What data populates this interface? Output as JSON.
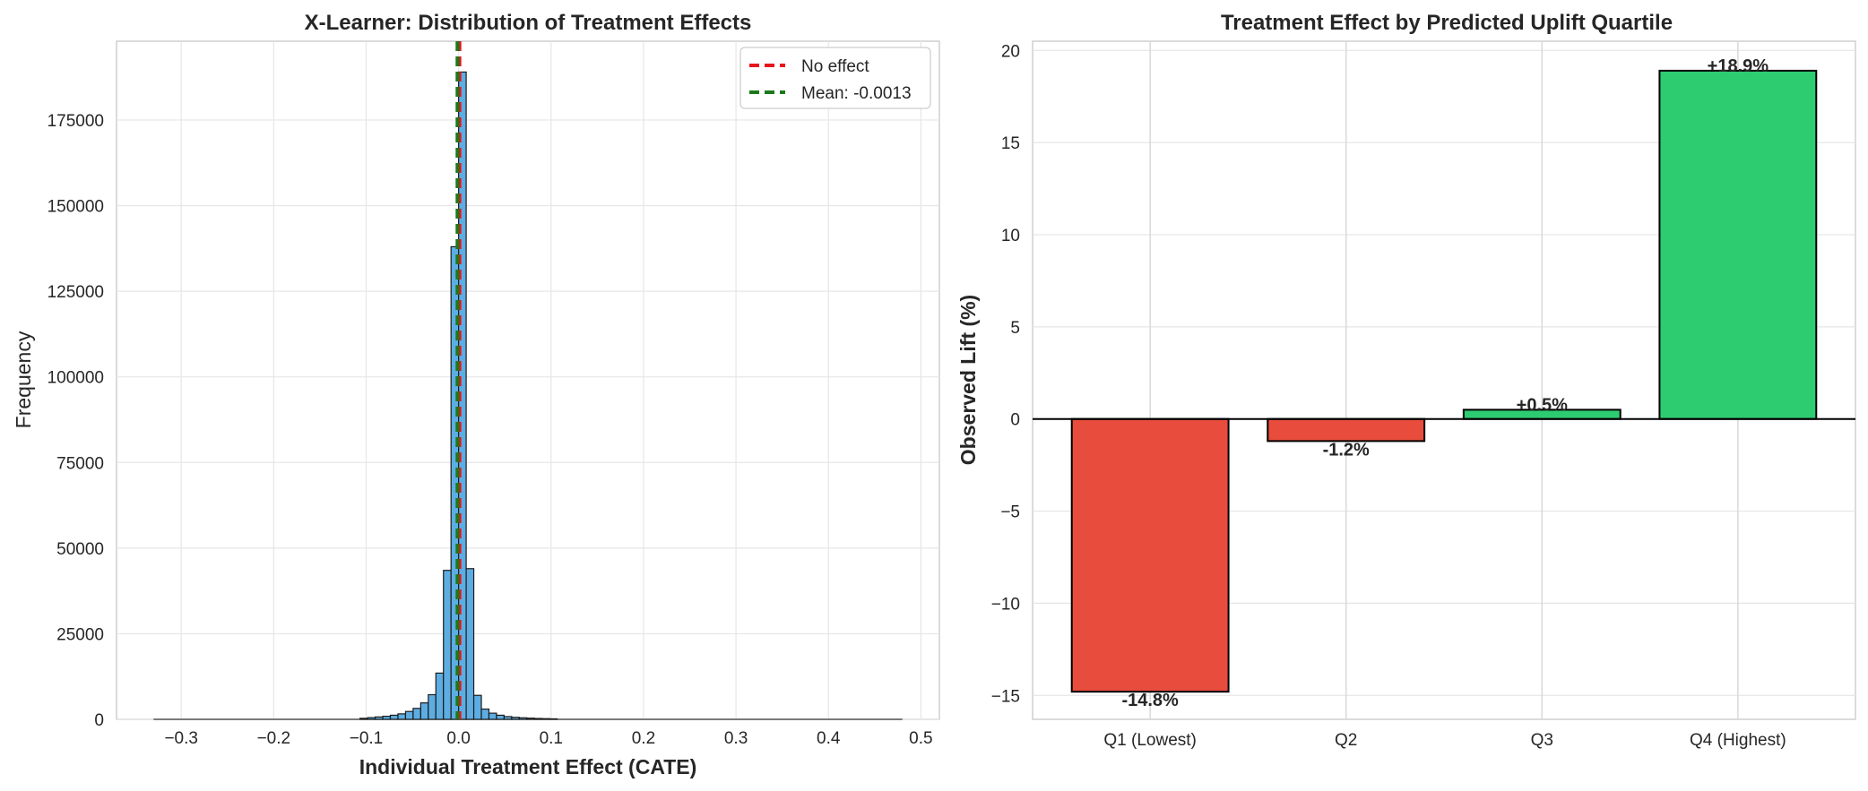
{
  "chart_data": [
    {
      "type": "bar",
      "subtype": "histogram",
      "title": "X-Learner: Distribution of Treatment Effects",
      "xlabel": "Individual Treatment Effect (CATE)",
      "ylabel": "Frequency",
      "xlim": [
        -0.37,
        0.52
      ],
      "ylim": [
        0,
        198000
      ],
      "xticks": [
        -0.3,
        -0.2,
        -0.1,
        0.0,
        0.1,
        0.2,
        0.3,
        0.4,
        0.5
      ],
      "xtick_labels": [
        "−0.3",
        "−0.2",
        "−0.1",
        "0.0",
        "0.1",
        "0.2",
        "0.3",
        "0.4",
        "0.5"
      ],
      "yticks": [
        0,
        25000,
        50000,
        75000,
        100000,
        125000,
        150000,
        175000
      ],
      "ytick_labels": [
        "0",
        "25000",
        "50000",
        "75000",
        "100000",
        "125000",
        "150000",
        "175000"
      ],
      "bin_width": 0.0082,
      "bins": [
        {
          "x0": -0.1066,
          "count": 300
        },
        {
          "x0": -0.0984,
          "count": 500
        },
        {
          "x0": -0.0902,
          "count": 700
        },
        {
          "x0": -0.082,
          "count": 900
        },
        {
          "x0": -0.0738,
          "count": 1200
        },
        {
          "x0": -0.0656,
          "count": 1600
        },
        {
          "x0": -0.0574,
          "count": 2300
        },
        {
          "x0": -0.0492,
          "count": 3200
        },
        {
          "x0": -0.041,
          "count": 4800
        },
        {
          "x0": -0.0328,
          "count": 7200
        },
        {
          "x0": -0.0246,
          "count": 13500
        },
        {
          "x0": -0.0164,
          "count": 43500
        },
        {
          "x0": -0.0082,
          "count": 138000
        },
        {
          "x0": 0.0,
          "count": 189000
        },
        {
          "x0": 0.0082,
          "count": 44000
        },
        {
          "x0": 0.0164,
          "count": 7000
        },
        {
          "x0": 0.0246,
          "count": 3000
        },
        {
          "x0": 0.0328,
          "count": 1800
        },
        {
          "x0": 0.041,
          "count": 1200
        },
        {
          "x0": 0.0492,
          "count": 800
        },
        {
          "x0": 0.0574,
          "count": 600
        },
        {
          "x0": 0.0656,
          "count": 450
        },
        {
          "x0": 0.0738,
          "count": 350
        },
        {
          "x0": 0.082,
          "count": 250
        },
        {
          "x0": 0.0902,
          "count": 200
        },
        {
          "x0": 0.0984,
          "count": 150
        }
      ],
      "reference_lines": [
        {
          "name": "No effect",
          "x": 0.0,
          "color": "#e8141c",
          "style": "dashed"
        },
        {
          "name": "Mean: -0.0013",
          "x": -0.0013,
          "color": "#1a7a1a",
          "style": "dashed"
        }
      ],
      "bar_color": "#5dade2",
      "legend_position": "top-right",
      "grid": true
    },
    {
      "type": "bar",
      "title": "Treatment Effect by Predicted Uplift Quartile",
      "xlabel": "",
      "ylabel": "Observed Lift (%)",
      "categories": [
        "Q1 (Lowest)",
        "Q2",
        "Q3",
        "Q4 (Highest)"
      ],
      "values": [
        -14.8,
        -1.2,
        0.5,
        18.9
      ],
      "value_labels": [
        "-14.8%",
        "-1.2%",
        "+0.5%",
        "+18.9%"
      ],
      "colors": [
        "#e74c3c",
        "#e74c3c",
        "#2ecc71",
        "#2ecc71"
      ],
      "ylim": [
        -16.3,
        20.5
      ],
      "yticks": [
        -15,
        -10,
        -5,
        0,
        5,
        10,
        15,
        20
      ],
      "ytick_labels": [
        "−15",
        "−10",
        "−5",
        "0",
        "5",
        "10",
        "15",
        "20"
      ],
      "grid": true
    }
  ]
}
